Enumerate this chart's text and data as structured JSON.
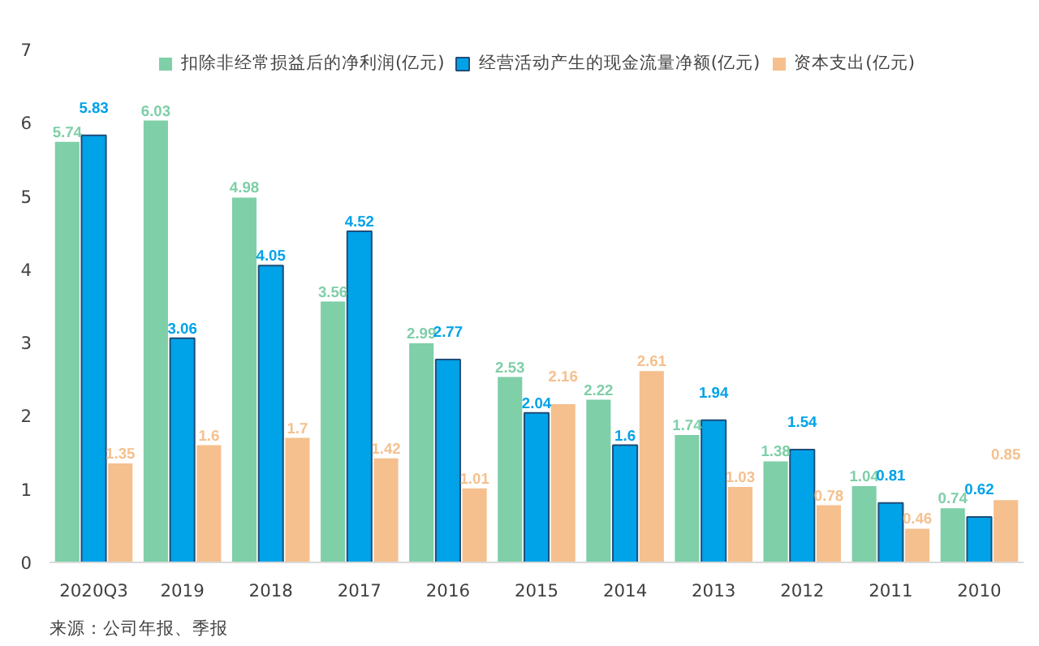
{
  "chart_data": {
    "type": "bar",
    "categories": [
      "2020Q3",
      "2019",
      "2018",
      "2017",
      "2016",
      "2015",
      "2014",
      "2013",
      "2012",
      "2011",
      "2010"
    ],
    "series": [
      {
        "name": "扣除非经常损益后的净利润(亿元)",
        "color": "#7fcfa8",
        "values": [
          5.74,
          6.03,
          4.98,
          3.56,
          2.99,
          2.53,
          2.22,
          1.74,
          1.38,
          1.04,
          0.74
        ]
      },
      {
        "name": "经营活动产生的现金流量净额(亿元)",
        "color": "#00a2e8",
        "values": [
          5.83,
          3.06,
          4.05,
          4.52,
          2.77,
          2.04,
          1.6,
          1.94,
          1.54,
          0.81,
          0.62
        ]
      },
      {
        "name": "资本支出(亿元)",
        "color": "#f5c08e",
        "values": [
          1.35,
          1.6,
          1.7,
          1.42,
          1.01,
          2.16,
          2.61,
          1.03,
          0.78,
          0.46,
          0.85
        ]
      }
    ],
    "ylim": [
      0,
      7
    ],
    "yticks": [
      0,
      1,
      2,
      3,
      4,
      5,
      6,
      7
    ],
    "data_labels": true,
    "legend": "top",
    "grid": false,
    "annotations": [
      "来源：公司年报、季报"
    ]
  }
}
